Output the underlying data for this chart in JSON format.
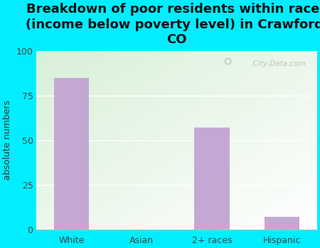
{
  "categories": [
    "White",
    "Asian",
    "2+ races",
    "Hispanic"
  ],
  "values": [
    85,
    0,
    57,
    7
  ],
  "bar_color": "#c4a8d4",
  "title": "Breakdown of poor residents within races\n(income below poverty level) in Crawford,\nCO",
  "ylabel": "absolute numbers",
  "ylim": [
    0,
    100
  ],
  "yticks": [
    0,
    25,
    50,
    75,
    100
  ],
  "bg_color": "#00eeff",
  "watermark": "  City-Data.com",
  "title_fontsize": 13,
  "ylabel_fontsize": 9,
  "tick_fontsize": 9,
  "bar_width": 0.5
}
